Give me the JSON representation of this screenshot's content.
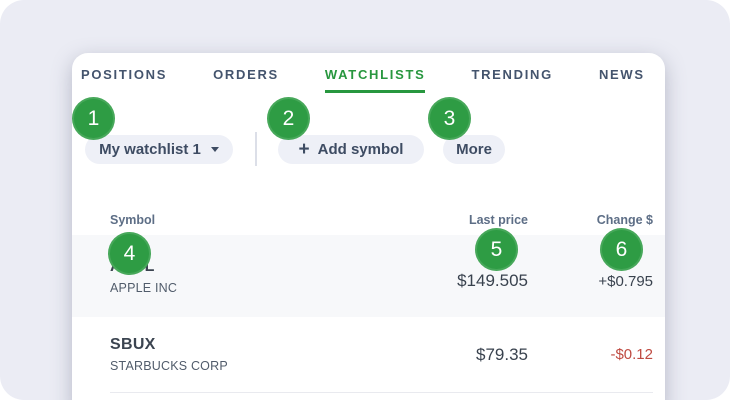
{
  "colors": {
    "accent_green": "#2e9c44",
    "active_tab_green": "#28973f",
    "negative_red": "#bf4a41",
    "frame_background": "#ebecf4",
    "pill_background": "#eef0f7",
    "tab_text": "#44546d"
  },
  "tabs": [
    {
      "label": "POSITIONS"
    },
    {
      "label": "ORDERS"
    },
    {
      "label": "WATCHLISTS"
    },
    {
      "label": "TRENDING"
    },
    {
      "label": "NEWS"
    }
  ],
  "active_tab": "WATCHLISTS",
  "annotations": {
    "badges": [
      "1",
      "2",
      "3",
      "4",
      "5",
      "6"
    ]
  },
  "toolbar": {
    "watchlist_selector_label": "My watchlist 1",
    "add_symbol_icon": "+",
    "add_symbol_label": "Add symbol",
    "more_label": "More"
  },
  "watchlist_table": {
    "headers": {
      "symbol": "Symbol",
      "last_price": "Last price",
      "change": "Change $"
    },
    "rows": [
      {
        "symbol": "AAPL",
        "company": "APPLE INC",
        "last_price": "$149.505",
        "change": "+$0.795"
      },
      {
        "symbol": "SBUX",
        "company": "STARBUCKS CORP",
        "last_price": "$79.35",
        "change": "-$0.12"
      }
    ]
  }
}
